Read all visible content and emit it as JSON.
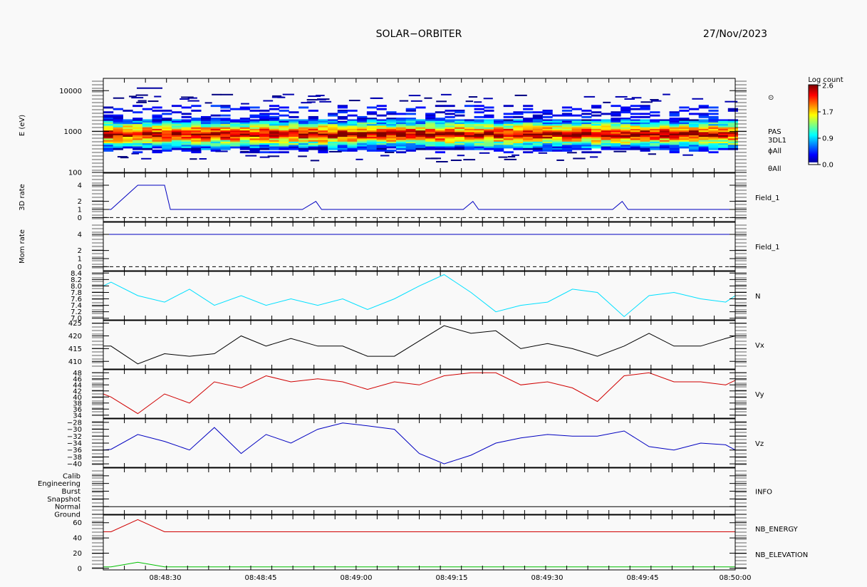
{
  "header": {
    "title": "SOLAR−ORBITER",
    "date": "27/Nov/2023"
  },
  "chart_data": [
    {
      "type": "heatmap",
      "name": "spectrogram",
      "ylabel": "E (eV)",
      "yscale": "log",
      "ylim": [
        100,
        20000
      ],
      "yticks": [
        {
          "v": 100,
          "l": "100"
        },
        {
          "v": 1000,
          "l": "1000"
        },
        {
          "v": 10000,
          "l": "10000"
        }
      ],
      "right_labels": [
        "⊙",
        "PAS",
        "3DL1",
        "ϕAll",
        "θAll"
      ],
      "colorbar": {
        "title": "Log count",
        "min": 0.0,
        "max": 2.6,
        "ticks": [
          "0.0",
          "0.9",
          "1.7",
          "2.6"
        ]
      },
      "band": {
        "peak_energy_eV": 900,
        "low_eV": 450,
        "high_eV": 3000
      }
    },
    {
      "type": "line",
      "name": "3d-rate",
      "ylabel": "3D rate",
      "ylim": [
        -0.5,
        5.5
      ],
      "yticks": [
        {
          "v": 0,
          "l": "0"
        },
        {
          "v": 1,
          "l": "1"
        },
        {
          "v": 2,
          "l": "2"
        },
        {
          "v": 4,
          "l": "4"
        }
      ],
      "dashed_zero": true,
      "series": [
        {
          "name": "Field_1",
          "color": "#0000c0",
          "points": [
            [
              0,
              1
            ],
            [
              4,
              1
            ],
            [
              18,
              4
            ],
            [
              32,
              4
            ],
            [
              35,
              1
            ],
            [
              104,
              1
            ],
            [
              111,
              2
            ],
            [
              114,
              1
            ],
            [
              188,
              1
            ],
            [
              193,
              2
            ],
            [
              196,
              1
            ],
            [
              266,
              1
            ],
            [
              271,
              2
            ],
            [
              274,
              1
            ],
            [
              330,
              1
            ]
          ]
        }
      ]
    },
    {
      "type": "line",
      "name": "mom-rate",
      "ylabel": "Mom rate",
      "ylim": [
        -0.5,
        5.5
      ],
      "yticks": [
        {
          "v": 0,
          "l": "0"
        },
        {
          "v": 1,
          "l": "1"
        },
        {
          "v": 2,
          "l": "2"
        },
        {
          "v": 4,
          "l": "4"
        }
      ],
      "dashed_zero": true,
      "series": [
        {
          "name": "Field_1",
          "color": "#0000c0",
          "points": [
            [
              0,
              4
            ],
            [
              330,
              4
            ]
          ]
        }
      ]
    },
    {
      "type": "line",
      "name": "density",
      "ylabel": "",
      "ylim": [
        6.95,
        8.45
      ],
      "yticks": [
        {
          "v": 7.0,
          "l": "7.0"
        },
        {
          "v": 7.2,
          "l": "7.2"
        },
        {
          "v": 7.4,
          "l": "7.4"
        },
        {
          "v": 7.6,
          "l": "7.6"
        },
        {
          "v": 7.8,
          "l": "7.8"
        },
        {
          "v": 8.0,
          "l": "8.0"
        },
        {
          "v": 8.2,
          "l": "8.2"
        },
        {
          "v": 8.4,
          "l": "8.4"
        }
      ],
      "series": [
        {
          "name": "N",
          "color": "#00e0ff",
          "points": [
            [
              0,
              8.0
            ],
            [
              4,
              8.12
            ],
            [
              18,
              7.7
            ],
            [
              32,
              7.5
            ],
            [
              45,
              7.9
            ],
            [
              58,
              7.4
            ],
            [
              72,
              7.7
            ],
            [
              85,
              7.4
            ],
            [
              98,
              7.6
            ],
            [
              112,
              7.4
            ],
            [
              125,
              7.6
            ],
            [
              138,
              7.27
            ],
            [
              152,
              7.6
            ],
            [
              165,
              8.0
            ],
            [
              178,
              8.35
            ],
            [
              192,
              7.8
            ],
            [
              205,
              7.2
            ],
            [
              218,
              7.4
            ],
            [
              232,
              7.5
            ],
            [
              245,
              7.9
            ],
            [
              258,
              7.8
            ],
            [
              272,
              7.05
            ],
            [
              285,
              7.7
            ],
            [
              298,
              7.8
            ],
            [
              312,
              7.6
            ],
            [
              325,
              7.5
            ],
            [
              330,
              7.7
            ]
          ]
        }
      ]
    },
    {
      "type": "line",
      "name": "vx",
      "ylabel": "",
      "ylim": [
        407,
        426
      ],
      "yticks": [
        {
          "v": 410,
          "l": "410"
        },
        {
          "v": 415,
          "l": "415"
        },
        {
          "v": 420,
          "l": "420"
        },
        {
          "v": 425,
          "l": "425"
        }
      ],
      "series": [
        {
          "name": "Vx",
          "color": "#000000",
          "points": [
            [
              0,
              416
            ],
            [
              4,
              416
            ],
            [
              18,
              409
            ],
            [
              32,
              413
            ],
            [
              45,
              412
            ],
            [
              58,
              413
            ],
            [
              72,
              420
            ],
            [
              85,
              416
            ],
            [
              98,
              419
            ],
            [
              112,
              416
            ],
            [
              125,
              416
            ],
            [
              138,
              412
            ],
            [
              152,
              412
            ],
            [
              165,
              418
            ],
            [
              178,
              424
            ],
            [
              192,
              421
            ],
            [
              205,
              422
            ],
            [
              218,
              415
            ],
            [
              232,
              417
            ],
            [
              245,
              415
            ],
            [
              258,
              412
            ],
            [
              272,
              416
            ],
            [
              285,
              421
            ],
            [
              298,
              416
            ],
            [
              312,
              416
            ],
            [
              325,
              419
            ],
            [
              330,
              420
            ]
          ]
        }
      ]
    },
    {
      "type": "line",
      "name": "vy",
      "ylabel": "",
      "ylim": [
        33,
        49
      ],
      "yticks": [
        {
          "v": 34,
          "l": "34"
        },
        {
          "v": 36,
          "l": "36"
        },
        {
          "v": 38,
          "l": "38"
        },
        {
          "v": 40,
          "l": "40"
        },
        {
          "v": 42,
          "l": "42"
        },
        {
          "v": 44,
          "l": "44"
        },
        {
          "v": 46,
          "l": "46"
        },
        {
          "v": 48,
          "l": "48"
        }
      ],
      "series": [
        {
          "name": "Vy",
          "color": "#d00000",
          "points": [
            [
              0,
              41
            ],
            [
              4,
              40
            ],
            [
              18,
              34.5
            ],
            [
              32,
              41
            ],
            [
              45,
              38
            ],
            [
              58,
              45
            ],
            [
              72,
              43
            ],
            [
              85,
              47
            ],
            [
              98,
              45
            ],
            [
              112,
              46
            ],
            [
              125,
              45
            ],
            [
              138,
              42.5
            ],
            [
              152,
              45
            ],
            [
              165,
              44
            ],
            [
              178,
              47
            ],
            [
              192,
              48
            ],
            [
              205,
              48
            ],
            [
              218,
              44
            ],
            [
              232,
              45
            ],
            [
              245,
              43
            ],
            [
              258,
              38.5
            ],
            [
              272,
              47
            ],
            [
              285,
              48
            ],
            [
              298,
              45
            ],
            [
              312,
              45
            ],
            [
              325,
              44
            ],
            [
              330,
              45.5
            ]
          ]
        }
      ]
    },
    {
      "type": "line",
      "name": "vz",
      "ylabel": "",
      "ylim": [
        -41,
        -27
      ],
      "yticks": [
        {
          "v": -40,
          "l": "−40"
        },
        {
          "v": -38,
          "l": "−38"
        },
        {
          "v": -36,
          "l": "−36"
        },
        {
          "v": -34,
          "l": "−34"
        },
        {
          "v": -32,
          "l": "−32"
        },
        {
          "v": -30,
          "l": "−30"
        },
        {
          "v": -28,
          "l": "−28"
        }
      ],
      "series": [
        {
          "name": "Vz",
          "color": "#0000c0",
          "points": [
            [
              0,
              -36
            ],
            [
              4,
              -35.8
            ],
            [
              18,
              -31.5
            ],
            [
              32,
              -33.5
            ],
            [
              45,
              -36
            ],
            [
              58,
              -29.5
            ],
            [
              72,
              -37
            ],
            [
              85,
              -31.5
            ],
            [
              98,
              -34
            ],
            [
              112,
              -30
            ],
            [
              125,
              -28.2
            ],
            [
              138,
              -29
            ],
            [
              152,
              -30
            ],
            [
              165,
              -37
            ],
            [
              178,
              -40
            ],
            [
              192,
              -37.5
            ],
            [
              205,
              -34
            ],
            [
              218,
              -32.5
            ],
            [
              232,
              -31.5
            ],
            [
              245,
              -32
            ],
            [
              258,
              -32
            ],
            [
              272,
              -30.5
            ],
            [
              285,
              -35
            ],
            [
              298,
              -36
            ],
            [
              312,
              -34
            ],
            [
              325,
              -34.5
            ],
            [
              330,
              -36
            ]
          ]
        }
      ]
    },
    {
      "type": "table",
      "name": "info",
      "ylabel": "",
      "ylim": [
        0,
        6
      ],
      "yticks": [
        {
          "v": 0,
          "l": "Ground"
        },
        {
          "v": 1,
          "l": "Normal"
        },
        {
          "v": 2,
          "l": "Snapshot"
        },
        {
          "v": 3,
          "l": "Burst"
        },
        {
          "v": 4,
          "l": "Engineering"
        },
        {
          "v": 5,
          "l": "Calib"
        }
      ],
      "series": [
        {
          "name": "INFO",
          "color": "#000000",
          "points": [
            [
              0,
              1
            ],
            [
              330,
              1
            ]
          ]
        }
      ]
    },
    {
      "type": "line",
      "name": "nb",
      "ylabel": "",
      "ylim": [
        -2,
        70
      ],
      "yticks": [
        {
          "v": 0,
          "l": "0"
        },
        {
          "v": 20,
          "l": "20"
        },
        {
          "v": 40,
          "l": "40"
        },
        {
          "v": 60,
          "l": "60"
        }
      ],
      "series": [
        {
          "name": "NB_ENERGY",
          "color": "#d00000",
          "points": [
            [
              0,
              48
            ],
            [
              4,
              48
            ],
            [
              18,
              64
            ],
            [
              32,
              48
            ],
            [
              330,
              48
            ]
          ]
        },
        {
          "name": "NB_ELEVATION",
          "color": "#00c000",
          "points": [
            [
              0,
              2
            ],
            [
              4,
              2
            ],
            [
              18,
              8
            ],
            [
              32,
              2
            ],
            [
              330,
              2
            ]
          ]
        }
      ]
    }
  ],
  "xaxis": {
    "unit": "seconds",
    "xlim": [
      0,
      330
    ],
    "ticks": [
      {
        "v": 30,
        "l": "08:48:30"
      },
      {
        "v": 90,
        "l": "08:48:45"
      },
      {
        "v": 150,
        "l": "08:49:00"
      },
      {
        "v": 210,
        "l": "08:49:15"
      },
      {
        "v": 270,
        "l": "08:49:30"
      },
      {
        "v": 330,
        "l": "08:49:45"
      },
      {
        "v": 390,
        "l": "08:50:00"
      }
    ]
  }
}
